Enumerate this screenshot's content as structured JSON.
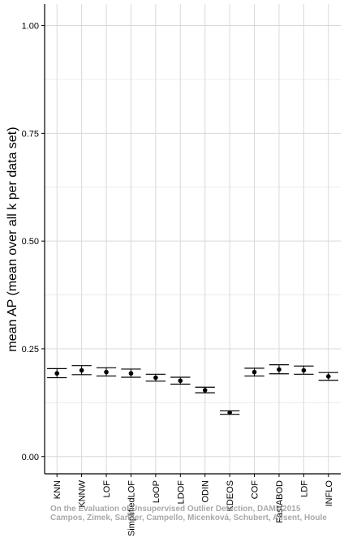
{
  "chart_data": {
    "type": "scatter",
    "ylabel": "mean AP (mean over all k per data set)",
    "ylim": [
      -0.04,
      1.05
    ],
    "yticks": [
      0.0,
      0.25,
      0.5,
      0.75,
      1.0
    ],
    "ytick_labels": [
      "0.00",
      "0.25",
      "0.50",
      "0.75",
      "1.00"
    ],
    "grid": true,
    "categories": [
      "KNN",
      "KNNW",
      "LOF",
      "SimplifiedLOF",
      "LoOP",
      "LDOF",
      "ODIN",
      "KDEOS",
      "COF",
      "FastABOD",
      "LDF",
      "INFLO"
    ],
    "points": [
      {
        "mean": 0.193,
        "lower": 0.183,
        "upper": 0.204
      },
      {
        "mean": 0.2,
        "lower": 0.19,
        "upper": 0.211
      },
      {
        "mean": 0.196,
        "lower": 0.187,
        "upper": 0.206
      },
      {
        "mean": 0.193,
        "lower": 0.184,
        "upper": 0.203
      },
      {
        "mean": 0.183,
        "lower": 0.175,
        "upper": 0.191
      },
      {
        "mean": 0.176,
        "lower": 0.168,
        "upper": 0.184
      },
      {
        "mean": 0.154,
        "lower": 0.148,
        "upper": 0.161
      },
      {
        "mean": 0.102,
        "lower": 0.098,
        "upper": 0.106
      },
      {
        "mean": 0.196,
        "lower": 0.187,
        "upper": 0.205
      },
      {
        "mean": 0.202,
        "lower": 0.192,
        "upper": 0.213
      },
      {
        "mean": 0.2,
        "lower": 0.191,
        "upper": 0.21
      },
      {
        "mean": 0.186,
        "lower": 0.177,
        "upper": 0.195
      }
    ],
    "colors": {
      "panel": "#ffffff",
      "grid_major": "#d9d9d9",
      "grid_minor": "#ececec",
      "axis": "#000000",
      "mark": "#000000"
    }
  },
  "watermark": {
    "line1": "On the Evaluation of Unsupervised Outlier Detection, DAMI, 2015",
    "line2": "Campos, Zimek, Sander, Campello, Micenková, Schubert, Assent, Houle"
  }
}
